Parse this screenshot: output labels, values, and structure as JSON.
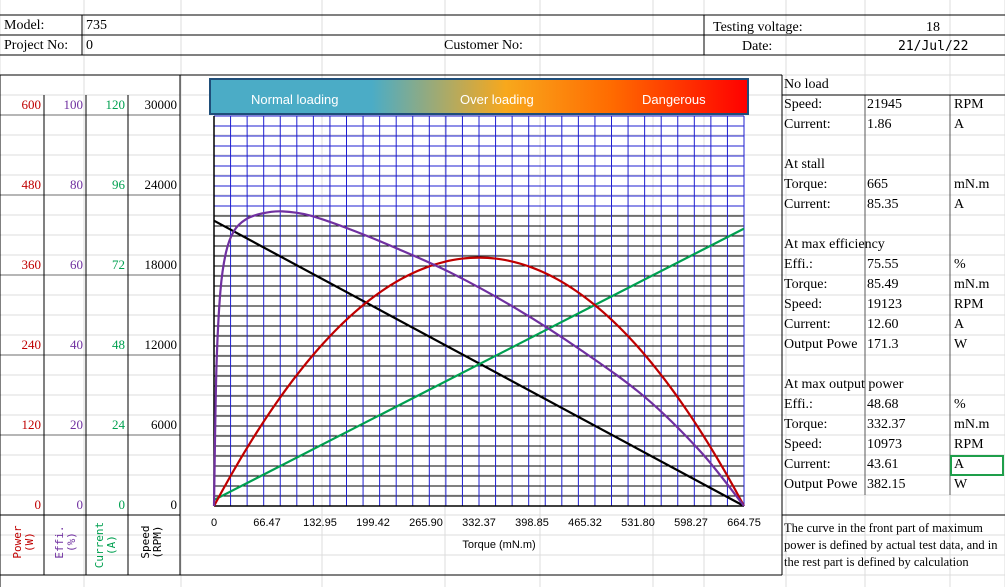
{
  "header": {
    "model_label": "Model:",
    "model_value": "735",
    "project_label": "Project No:",
    "project_value": "0",
    "customer_label": "Customer No:",
    "voltage_label": "Testing voltage:",
    "voltage_value": "18",
    "date_label": "Date:",
    "date_value": "21/Jul/22"
  },
  "left_axes": {
    "rows": [
      {
        "power": "600",
        "effi": "100",
        "current": "120",
        "speed": "30000"
      },
      {
        "power": "480",
        "effi": "80",
        "current": "96",
        "speed": "24000"
      },
      {
        "power": "360",
        "effi": "60",
        "current": "72",
        "speed": "18000"
      },
      {
        "power": "240",
        "effi": "40",
        "current": "48",
        "speed": "12000"
      },
      {
        "power": "120",
        "effi": "20",
        "current": "24",
        "speed": "6000"
      },
      {
        "power": "0",
        "effi": "0",
        "current": "0",
        "speed": "0"
      }
    ],
    "titles": {
      "power": "Power\n(W)",
      "effi": "Effi.\n(%)",
      "current": "Current\n(A)",
      "speed": "Speed\n(RPM)"
    },
    "colors": {
      "power": "#c00000",
      "effi": "#7030a0",
      "current": "#00a050",
      "speed": "#000000"
    }
  },
  "banner": {
    "normal": "Normal loading",
    "over": "Over loading",
    "danger": "Dangerous"
  },
  "results": {
    "no_load_title": "No load",
    "no_load": [
      {
        "label": "Speed:",
        "value": "21945",
        "unit": "RPM"
      },
      {
        "label": "Current:",
        "value": "1.86",
        "unit": "A"
      }
    ],
    "stall_title": "At stall",
    "stall": [
      {
        "label": "Torque:",
        "value": "665",
        "unit": "mN.m"
      },
      {
        "label": "Current:",
        "value": "85.35",
        "unit": "A"
      }
    ],
    "max_eff_title": "At max efficiency",
    "max_eff": [
      {
        "label": "Effi.:",
        "value": "75.55",
        "unit": "%"
      },
      {
        "label": "Torque:",
        "value": "85.49",
        "unit": "mN.m"
      },
      {
        "label": "Speed:",
        "value": "19123",
        "unit": "RPM"
      },
      {
        "label": "Current:",
        "value": "12.60",
        "unit": "A"
      },
      {
        "label": "Output Powe",
        "value": "171.3",
        "unit": "W"
      }
    ],
    "max_power_title": "At max output power",
    "max_power": [
      {
        "label": "Effi.:",
        "value": "48.68",
        "unit": "%"
      },
      {
        "label": "Torque:",
        "value": "332.37",
        "unit": "mN.m"
      },
      {
        "label": "Speed:",
        "value": "10973",
        "unit": "RPM"
      },
      {
        "label": "Current:",
        "value": "43.61",
        "unit": "A"
      },
      {
        "label": "Output Powe",
        "value": "382.15",
        "unit": "W"
      }
    ],
    "note": "The curve in the front part of maximum power is defined by actual test data, and in the rest part is defined by calculation"
  },
  "chart_data": {
    "type": "line",
    "xlabel": "Torque (mN.m)",
    "x_ticks": [
      "0",
      "66.47",
      "132.95",
      "199.42",
      "265.90",
      "332.37",
      "398.85",
      "465.32",
      "531.80",
      "598.27",
      "664.75"
    ],
    "xlim": [
      0,
      664.75
    ],
    "ylim_speed": [
      0,
      30000
    ],
    "grid": true,
    "series": [
      {
        "name": "Speed",
        "axis": "speed",
        "color": "#000000",
        "x": [
          0,
          664.75
        ],
        "y": [
          21945,
          0
        ]
      },
      {
        "name": "Current",
        "axis": "current",
        "color": "#00a050",
        "x": [
          0,
          664.75
        ],
        "y": [
          1.86,
          85.35
        ]
      },
      {
        "name": "Power",
        "axis": "power",
        "color": "#c00000",
        "x": [
          0,
          66.47,
          132.95,
          199.42,
          265.9,
          332.37,
          398.85,
          465.32,
          531.8,
          598.27,
          664.75
        ],
        "y": [
          0,
          137.6,
          244.6,
          321.0,
          366.9,
          382.15,
          366.9,
          321.0,
          244.6,
          137.6,
          0
        ]
      },
      {
        "name": "Effi.",
        "axis": "effi",
        "color": "#7030a0",
        "x": [
          0,
          3,
          8,
          15,
          25,
          40,
          60,
          85.49,
          120,
          170,
          230,
          300,
          380,
          460,
          540,
          610,
          664.75
        ],
        "y": [
          0,
          35,
          55,
          65,
          70.5,
          73.5,
          75,
          75.55,
          74.5,
          71,
          66,
          59.5,
          50.5,
          40,
          28,
          14,
          0
        ]
      }
    ]
  }
}
